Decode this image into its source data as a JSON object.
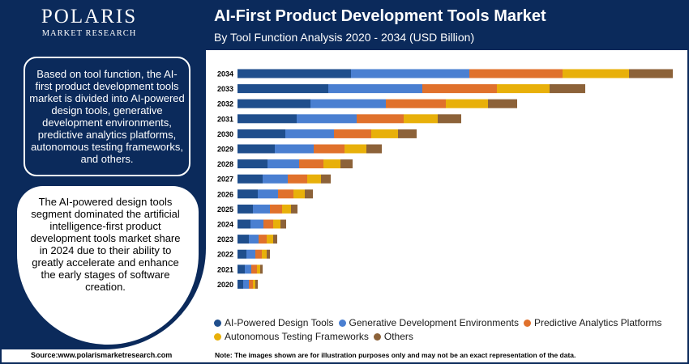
{
  "header": {
    "logo_main": "POLARIS",
    "logo_sub": "MARKET RESEARCH",
    "title": "AI-First Product Development Tools Market",
    "subtitle": "By Tool Function Analysis 2020 - 2034 (USD Billion)"
  },
  "sidebar": {
    "box1_text": "Based on tool function, the AI-first product development tools market is divided into AI-powered design tools, generative development environments, predictive analytics platforms, autonomous testing frameworks, and others.",
    "box2_text": "The AI-powered design tools segment dominated the artificial intelligence-first product development tools market share in 2024 due to their ability to greatly accelerate and enhance the early stages of software creation."
  },
  "footer": {
    "source": "Source:www.polarismarketresearch.com",
    "note": "Note: The images shown are for illustration purposes only and may not be an exact representation of the data."
  },
  "colors": {
    "brand_navy": "#0b2a5b",
    "series": [
      "#1f4e8c",
      "#4a7fd1",
      "#e0712c",
      "#e8b00a",
      "#8c6239"
    ]
  },
  "chart_data": {
    "type": "bar",
    "orientation": "horizontal",
    "stacked": true,
    "axes_visible": false,
    "grid": false,
    "legend_position": "bottom",
    "categories": [
      "2034",
      "2033",
      "2032",
      "2031",
      "2030",
      "2029",
      "2028",
      "2027",
      "2026",
      "2025",
      "2024",
      "2023",
      "2022",
      "2021",
      "2020"
    ],
    "series": [
      {
        "name": "AI-Powered Design Tools",
        "color": "#1f4e8c",
        "values": [
          140,
          112,
          90,
          73,
          59,
          46,
          37,
          31,
          25,
          19,
          16,
          14,
          11,
          9,
          7
        ]
      },
      {
        "name": "Generative Development Environments",
        "color": "#4a7fd1",
        "values": [
          146,
          116,
          93,
          74,
          60,
          48,
          39,
          31,
          25,
          21,
          16,
          12,
          11,
          8,
          7
        ]
      },
      {
        "name": "Predictive Analytics Platforms",
        "color": "#e0712c",
        "values": [
          115,
          92,
          74,
          58,
          46,
          38,
          30,
          24,
          19,
          15,
          12,
          10,
          8,
          7,
          5
        ]
      },
      {
        "name": "Autonomous Testing Frameworks",
        "color": "#e8b00a",
        "values": [
          82,
          65,
          52,
          42,
          33,
          27,
          21,
          17,
          14,
          11,
          9,
          8,
          6,
          4,
          3
        ]
      },
      {
        "name": "Others",
        "color": "#8c6239",
        "values": [
          54,
          44,
          36,
          29,
          23,
          19,
          15,
          12,
          10,
          8,
          7,
          5,
          4,
          3,
          3
        ]
      }
    ],
    "title": "",
    "xlabel": "",
    "ylabel": ""
  }
}
